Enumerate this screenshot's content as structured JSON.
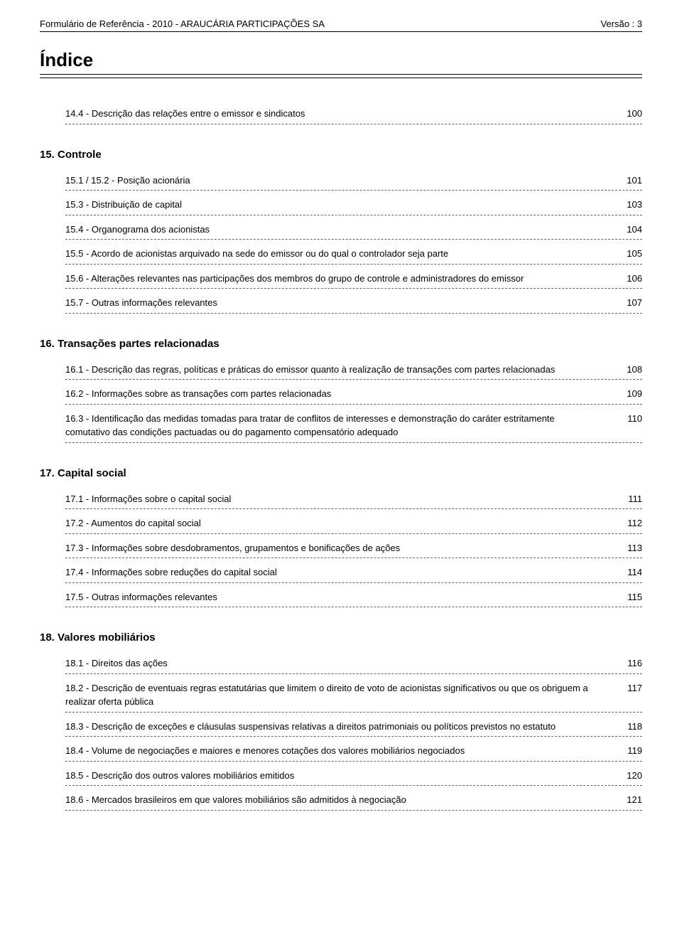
{
  "header": {
    "left": "Formulário de Referência - 2010 - ARAUCÁRIA PARTICIPAÇÕES SA",
    "right": "Versão : 3"
  },
  "indexTitle": "Índice",
  "sections": [
    {
      "heading": null,
      "items": [
        {
          "text": "14.4 - Descrição das relações entre o emissor e sindicatos",
          "page": "100"
        }
      ]
    },
    {
      "heading": "15. Controle",
      "items": [
        {
          "text": "15.1 / 15.2 - Posição acionária",
          "page": "101"
        },
        {
          "text": "15.3 - Distribuição de capital",
          "page": "103"
        },
        {
          "text": "15.4 - Organograma dos acionistas",
          "page": "104"
        },
        {
          "text": "15.5 - Acordo de acionistas arquivado na sede do emissor ou do qual o controlador seja parte",
          "page": "105"
        },
        {
          "text": "15.6 - Alterações relevantes nas participações dos membros do grupo de controle e administradores do emissor",
          "page": "106"
        },
        {
          "text": "15.7 - Outras informações relevantes",
          "page": "107"
        }
      ]
    },
    {
      "heading": "16. Transações partes relacionadas",
      "items": [
        {
          "text": "16.1 - Descrição das regras, políticas e práticas do emissor quanto à realização de transações com partes relacionadas",
          "page": "108"
        },
        {
          "text": "16.2 - Informações sobre as transações com partes relacionadas",
          "page": "109"
        },
        {
          "text": "16.3 - Identificação das medidas tomadas para tratar de conflitos de interesses e demonstração do caráter estritamente comutativo das condições pactuadas ou do pagamento compensatório adequado",
          "page": "110"
        }
      ]
    },
    {
      "heading": "17. Capital social",
      "items": [
        {
          "text": "17.1 - Informações sobre o capital social",
          "page": "111"
        },
        {
          "text": "17.2 - Aumentos do capital social",
          "page": "112"
        },
        {
          "text": "17.3 - Informações sobre desdobramentos, grupamentos e bonificações de ações",
          "page": "113"
        },
        {
          "text": "17.4 - Informações sobre reduções do capital social",
          "page": "114"
        },
        {
          "text": "17.5 - Outras informações relevantes",
          "page": "115"
        }
      ]
    },
    {
      "heading": "18. Valores mobiliários",
      "items": [
        {
          "text": "18.1 - Direitos das ações",
          "page": "116"
        },
        {
          "text": "18.2 - Descrição de eventuais regras estatutárias que limitem o direito de voto de acionistas significativos ou que os obriguem a realizar oferta pública",
          "page": "117"
        },
        {
          "text": "18.3 - Descrição de exceções e cláusulas suspensivas relativas a direitos patrimoniais ou políticos previstos no estatuto",
          "page": "118"
        },
        {
          "text": "18.4 - Volume de negociações e maiores e menores cotações dos valores mobiliários negociados",
          "page": "119"
        },
        {
          "text": "18.5 - Descrição dos outros valores mobiliários emitidos",
          "page": "120"
        },
        {
          "text": "18.6 - Mercados brasileiros em que valores mobiliários são admitidos à negociação",
          "page": "121"
        }
      ]
    }
  ]
}
